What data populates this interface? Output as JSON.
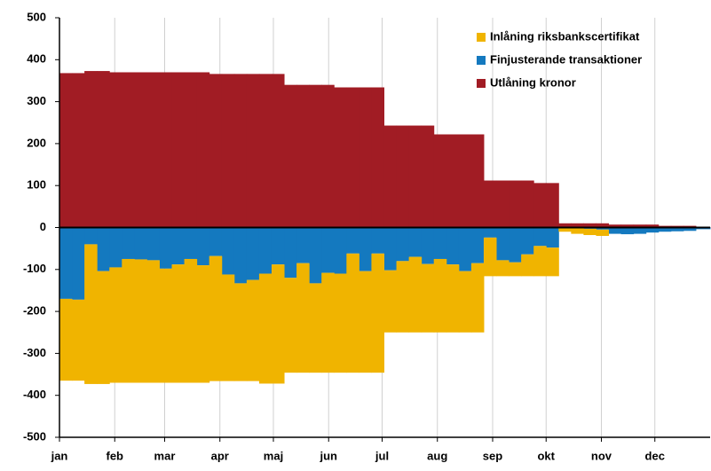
{
  "chart_data": {
    "type": "stacked-step",
    "x": [
      0,
      7,
      14,
      21,
      28,
      35,
      42,
      49,
      56,
      63,
      70,
      77,
      84,
      91,
      98,
      105,
      112,
      119,
      126,
      133,
      140,
      147,
      154,
      161,
      168,
      175,
      182,
      189,
      196,
      203,
      210,
      217,
      224,
      231,
      238,
      245,
      252,
      259,
      266,
      273,
      280,
      287,
      294,
      301,
      308,
      315,
      322,
      329,
      336,
      343,
      350,
      357
    ],
    "xlim": [
      0,
      365
    ],
    "xticks": [
      {
        "value": 0,
        "label": "jan"
      },
      {
        "value": 31,
        "label": "feb"
      },
      {
        "value": 59,
        "label": "mar"
      },
      {
        "value": 90,
        "label": "apr"
      },
      {
        "value": 120,
        "label": "maj"
      },
      {
        "value": 151,
        "label": "jun"
      },
      {
        "value": 181,
        "label": "jul"
      },
      {
        "value": 212,
        "label": "aug"
      },
      {
        "value": 243,
        "label": "sep"
      },
      {
        "value": 273,
        "label": "okt"
      },
      {
        "value": 304,
        "label": "nov"
      },
      {
        "value": 334,
        "label": "dec"
      }
    ],
    "ylim": [
      -500,
      500
    ],
    "yticks": [
      -500,
      -400,
      -300,
      -200,
      -100,
      0,
      100,
      200,
      300,
      400,
      500
    ],
    "grid": "x",
    "legend": "top-right",
    "series": [
      {
        "name": "Inlåning riksbankscertifikat",
        "color": "#f0b400",
        "values": [
          -195,
          -193,
          -333,
          -269,
          -275,
          -295,
          -294,
          -292,
          -272,
          -282,
          -295,
          -280,
          -298,
          -254,
          -233,
          -241,
          -262,
          -284,
          -226,
          -261,
          -213,
          -238,
          -236,
          -284,
          -242,
          -284,
          -148,
          -170,
          -180,
          -163,
          -175,
          -162,
          -146,
          -165,
          -92,
          -38,
          -33,
          -52,
          -72,
          -68,
          -8,
          -13,
          -15,
          -15,
          0,
          0,
          0,
          0,
          0,
          0,
          0,
          0
        ]
      },
      {
        "name": "Finjusterande transaktioner",
        "color": "#1479bf",
        "values": [
          -170,
          -172,
          -40,
          -104,
          -95,
          -75,
          -76,
          -78,
          -98,
          -88,
          -75,
          -90,
          -68,
          -112,
          -133,
          -125,
          -110,
          -88,
          -120,
          -85,
          -133,
          -108,
          -110,
          -62,
          -104,
          -62,
          -102,
          -80,
          -70,
          -87,
          -75,
          -88,
          -104,
          -85,
          -24,
          -78,
          -83,
          -64,
          -44,
          -48,
          -2,
          -2,
          -3,
          -5,
          -15,
          -16,
          -15,
          -12,
          -10,
          -9,
          -8,
          -4
        ]
      },
      {
        "name": "Utlåning kronor",
        "color": "#a11c24",
        "values": [
          368,
          368,
          373,
          373,
          370,
          370,
          370,
          370,
          370,
          370,
          370,
          370,
          366,
          366,
          366,
          366,
          366,
          366,
          340,
          340,
          340,
          340,
          334,
          334,
          334,
          334,
          243,
          243,
          243,
          243,
          222,
          222,
          222,
          222,
          112,
          112,
          112,
          112,
          106,
          106,
          10,
          10,
          10,
          10,
          7,
          7,
          7,
          7,
          4,
          4,
          4,
          1
        ]
      }
    ]
  }
}
